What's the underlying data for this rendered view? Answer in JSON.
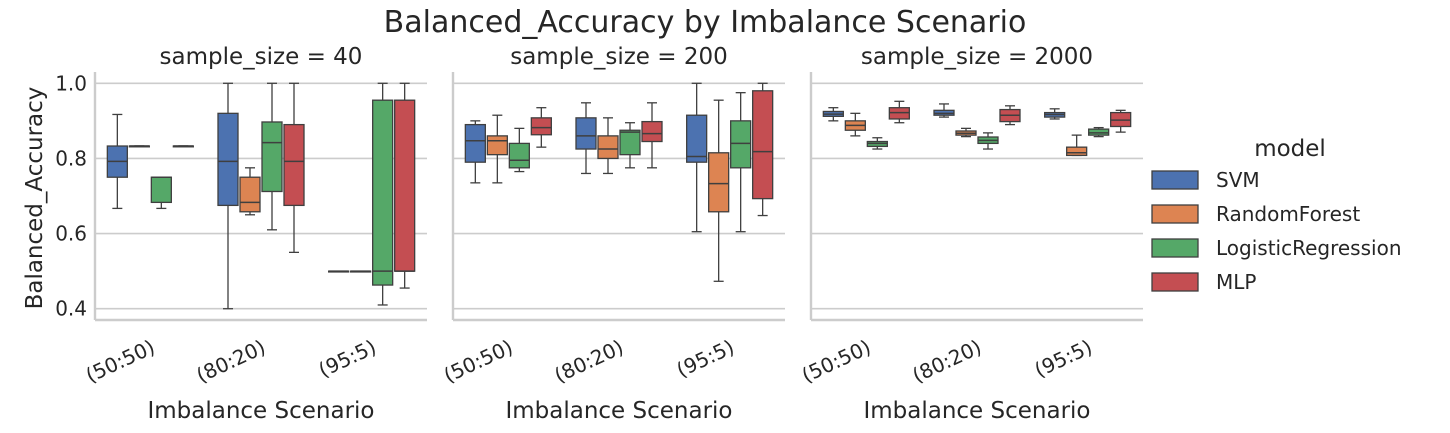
{
  "chart_data": {
    "type": "box",
    "title": "Balanced_Accuracy by Imbalance Scenario",
    "ylabel": "Balanced_Accuracy",
    "xlabel": "Imbalance Scenario",
    "ylim": [
      0.37,
      1.03
    ],
    "yticks": [
      "0.4",
      "0.6",
      "0.8",
      "1.0"
    ],
    "ytick_values": [
      0.4,
      0.6,
      0.8,
      1.0
    ],
    "grid": "horizontal",
    "categories": [
      "(50:50)",
      "(80:20)",
      "(95:5)"
    ],
    "legend": {
      "title": "model",
      "placement": "right",
      "entries": [
        {
          "name": "SVM",
          "color": "#4c72b0"
        },
        {
          "name": "RandomForest",
          "color": "#dd8452"
        },
        {
          "name": "LogisticRegression",
          "color": "#55a868"
        },
        {
          "name": "MLP",
          "color": "#c44e52"
        }
      ]
    },
    "panels": [
      {
        "title": "sample_size = 40",
        "boxes": [
          [
            [
              0.667,
              0.75,
              0.792,
              0.833,
              0.917
            ],
            [
              0.833,
              0.833,
              0.833,
              0.833,
              0.833
            ],
            [
              0.667,
              0.683,
              0.75,
              0.75,
              0.75
            ],
            [
              0.833,
              0.833,
              0.833,
              0.833,
              0.833
            ]
          ],
          [
            [
              0.4,
              0.675,
              0.792,
              0.92,
              1.0
            ],
            [
              0.65,
              0.658,
              0.683,
              0.75,
              0.775
            ],
            [
              0.61,
              0.712,
              0.842,
              0.897,
              1.0
            ],
            [
              0.55,
              0.675,
              0.792,
              0.89,
              1.0
            ]
          ],
          [
            [
              0.5,
              0.5,
              0.5,
              0.5,
              0.5
            ],
            [
              0.5,
              0.5,
              0.5,
              0.5,
              0.5
            ],
            [
              0.41,
              0.463,
              0.5,
              0.955,
              1.0
            ],
            [
              0.455,
              0.5,
              0.5,
              0.955,
              1.0
            ]
          ]
        ]
      },
      {
        "title": "sample_size = 200",
        "boxes": [
          [
            [
              0.735,
              0.79,
              0.847,
              0.89,
              0.9
            ],
            [
              0.735,
              0.81,
              0.847,
              0.86,
              0.915
            ],
            [
              0.765,
              0.775,
              0.795,
              0.84,
              0.88
            ],
            [
              0.83,
              0.863,
              0.882,
              0.908,
              0.935
            ]
          ],
          [
            [
              0.76,
              0.825,
              0.86,
              0.908,
              0.948
            ],
            [
              0.76,
              0.8,
              0.825,
              0.86,
              0.908
            ],
            [
              0.775,
              0.81,
              0.87,
              0.875,
              0.895
            ],
            [
              0.775,
              0.845,
              0.866,
              0.898,
              0.948
            ]
          ],
          [
            [
              0.605,
              0.79,
              0.805,
              0.915,
              1.0
            ],
            [
              0.473,
              0.658,
              0.733,
              0.815,
              0.955
            ],
            [
              0.605,
              0.775,
              0.84,
              0.9,
              0.975
            ],
            [
              0.648,
              0.693,
              0.818,
              0.98,
              1.0
            ]
          ]
        ]
      },
      {
        "title": "sample_size = 2000",
        "boxes": [
          [
            [
              0.9,
              0.912,
              0.918,
              0.925,
              0.935
            ],
            [
              0.86,
              0.875,
              0.888,
              0.9,
              0.92
            ],
            [
              0.825,
              0.832,
              0.84,
              0.845,
              0.855
            ],
            [
              0.895,
              0.905,
              0.922,
              0.935,
              0.952
            ]
          ],
          [
            [
              0.91,
              0.915,
              0.92,
              0.928,
              0.945
            ],
            [
              0.858,
              0.862,
              0.867,
              0.873,
              0.88
            ],
            [
              0.825,
              0.84,
              0.848,
              0.857,
              0.868
            ],
            [
              0.89,
              0.898,
              0.915,
              0.93,
              0.94
            ]
          ],
          [
            [
              0.905,
              0.91,
              0.917,
              0.922,
              0.932
            ],
            [
              0.808,
              0.808,
              0.815,
              0.83,
              0.862
            ],
            [
              0.858,
              0.862,
              0.868,
              0.878,
              0.882
            ],
            [
              0.87,
              0.885,
              0.902,
              0.922,
              0.928
            ]
          ]
        ]
      }
    ]
  }
}
